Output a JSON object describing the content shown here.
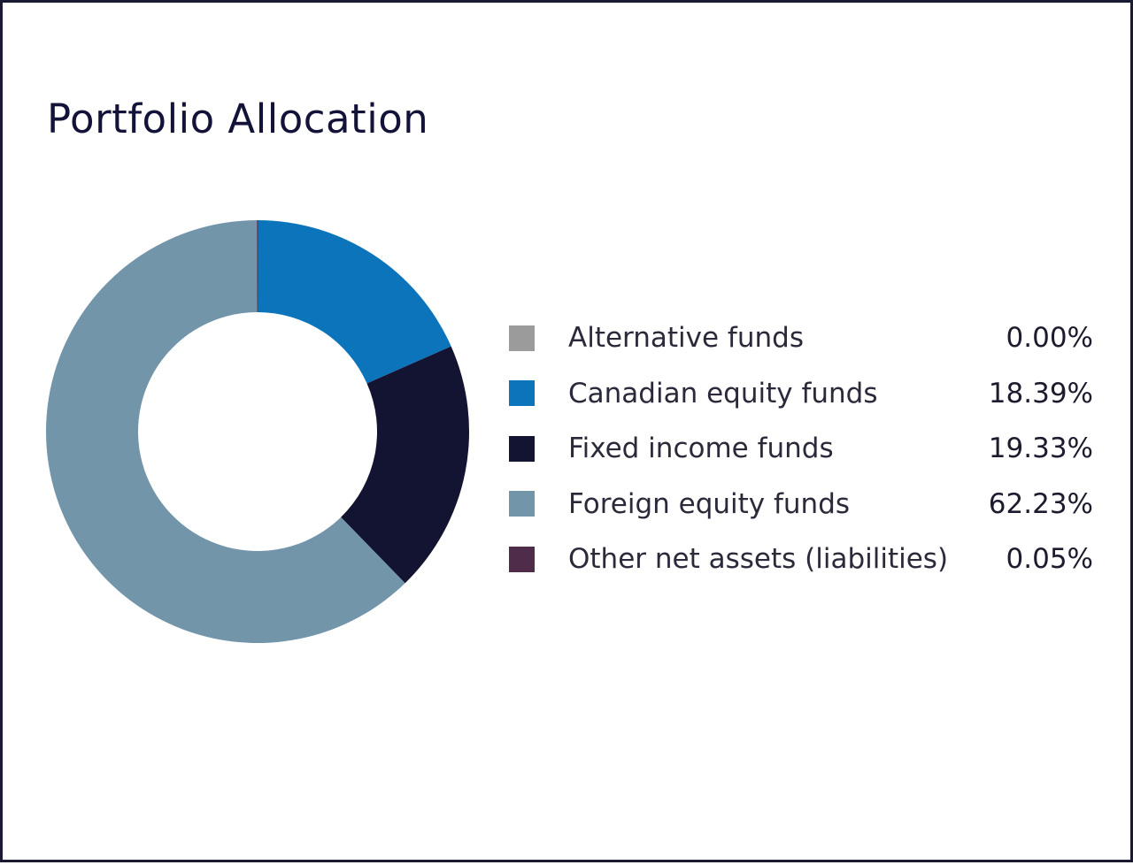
{
  "title": "Portfolio Allocation",
  "chart_data": {
    "type": "pie",
    "variant": "donut",
    "title": "Portfolio Allocation",
    "legend_position": "right",
    "slices": [
      {
        "label": "Alternative funds",
        "value": 0.0,
        "value_text": "0.00%",
        "color": "#9b9b9b"
      },
      {
        "label": "Canadian equity funds",
        "value": 18.39,
        "value_text": "18.39%",
        "color": "#0b74bb"
      },
      {
        "label": "Fixed income funds",
        "value": 19.33,
        "value_text": "19.33%",
        "color": "#131332"
      },
      {
        "label": "Foreign equity funds",
        "value": 62.23,
        "value_text": "62.23%",
        "color": "#7295aa"
      },
      {
        "label": "Other net assets (liabilities)",
        "value": 0.05,
        "value_text": "0.05%",
        "color": "#4f2c4a"
      }
    ]
  }
}
